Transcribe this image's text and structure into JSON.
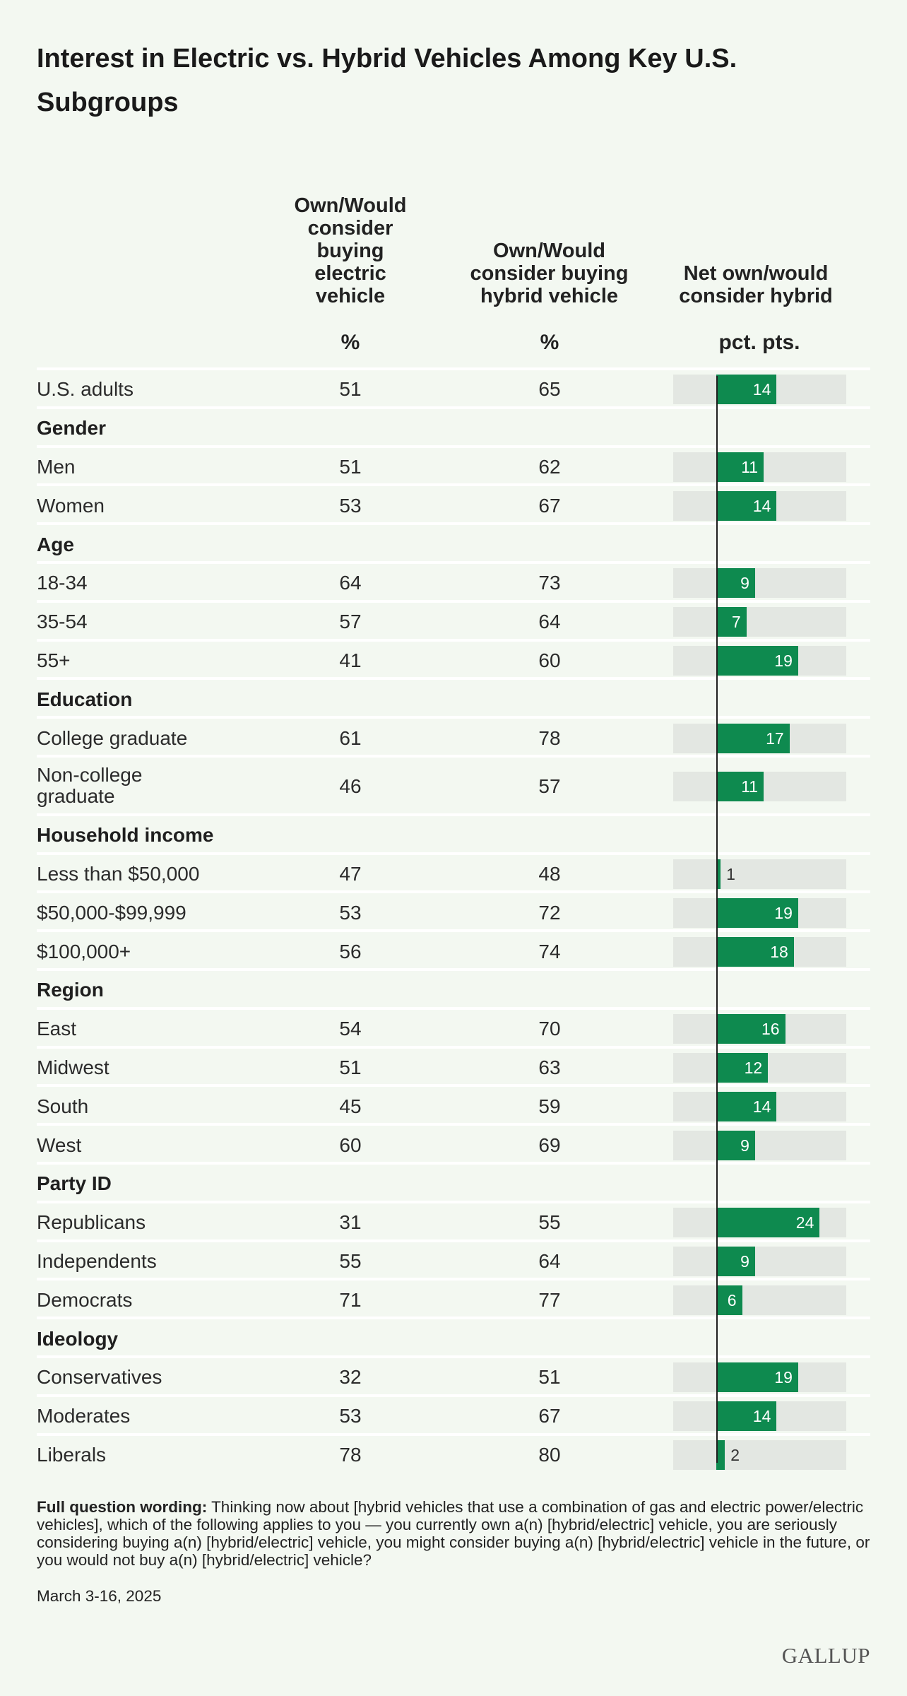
{
  "title": "Interest in Electric vs. Hybrid Vehicles Among Key U.S. Subgroups",
  "columns": {
    "electric": {
      "header": "Own/Would consider buying electric vehicle",
      "unit": "%"
    },
    "hybrid": {
      "header": "Own/Would consider buying hybrid vehicle",
      "unit": "%"
    },
    "net": {
      "header": "Net own/would consider hybrid",
      "unit": "pct. pts."
    }
  },
  "chart_data": {
    "type": "table",
    "title": "Interest in Electric vs. Hybrid Vehicles Among Key U.S. Subgroups",
    "bar_column": "net",
    "net_axis_max": 30,
    "rows": [
      {
        "label": "U.S. adults",
        "electric": 51,
        "hybrid": 65,
        "net": 14
      },
      {
        "group": "Gender"
      },
      {
        "label": "Men",
        "electric": 51,
        "hybrid": 62,
        "net": 11
      },
      {
        "label": "Women",
        "electric": 53,
        "hybrid": 67,
        "net": 14
      },
      {
        "group": "Age"
      },
      {
        "label": "18-34",
        "electric": 64,
        "hybrid": 73,
        "net": 9
      },
      {
        "label": "35-54",
        "electric": 57,
        "hybrid": 64,
        "net": 7
      },
      {
        "label": "55+",
        "electric": 41,
        "hybrid": 60,
        "net": 19
      },
      {
        "group": "Education"
      },
      {
        "label": "College graduate",
        "electric": 61,
        "hybrid": 78,
        "net": 17
      },
      {
        "label": "Non-college graduate",
        "label_lines": [
          "Non-college",
          "graduate"
        ],
        "electric": 46,
        "hybrid": 57,
        "net": 11
      },
      {
        "group": "Household income"
      },
      {
        "label": "Less than $50,000",
        "electric": 47,
        "hybrid": 48,
        "net": 1
      },
      {
        "label": "$50,000-$99,999",
        "electric": 53,
        "hybrid": 72,
        "net": 19
      },
      {
        "label": "$100,000+",
        "electric": 56,
        "hybrid": 74,
        "net": 18
      },
      {
        "group": "Region"
      },
      {
        "label": "East",
        "electric": 54,
        "hybrid": 70,
        "net": 16
      },
      {
        "label": "Midwest",
        "electric": 51,
        "hybrid": 63,
        "net": 12
      },
      {
        "label": "South",
        "electric": 45,
        "hybrid": 59,
        "net": 14
      },
      {
        "label": "West",
        "electric": 60,
        "hybrid": 69,
        "net": 9
      },
      {
        "group": "Party ID"
      },
      {
        "label": "Republicans",
        "electric": 31,
        "hybrid": 55,
        "net": 24
      },
      {
        "label": "Independents",
        "electric": 55,
        "hybrid": 64,
        "net": 9
      },
      {
        "label": "Democrats",
        "electric": 71,
        "hybrid": 77,
        "net": 6
      },
      {
        "group": "Ideology"
      },
      {
        "label": "Conservatives",
        "electric": 32,
        "hybrid": 51,
        "net": 19
      },
      {
        "label": "Moderates",
        "electric": 53,
        "hybrid": 67,
        "net": 14
      },
      {
        "label": "Liberals",
        "electric": 78,
        "hybrid": 80,
        "net": 2
      }
    ],
    "colors": {
      "bar": "#0e8a4f",
      "track": "#e3e7e2",
      "background": "#f3f8f1"
    }
  },
  "footnote": {
    "label": "Full question wording:",
    "text": " Thinking now about [hybrid vehicles that use a combination of gas and electric power/electric vehicles], which of the following applies to you — you currently own a(n) [hybrid/electric] vehicle, you are seriously considering buying a(n) [hybrid/electric] vehicle, you might consider buying a(n) [hybrid/electric] vehicle in the future, or you would not buy a(n) [hybrid/electric] vehicle?"
  },
  "date": "March 3-16, 2025",
  "logo": "GALLUP"
}
